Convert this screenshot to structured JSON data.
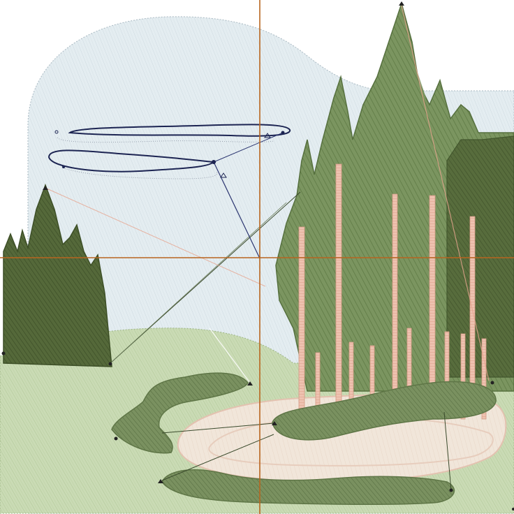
{
  "design": {
    "colors": {
      "background": "#ffffff",
      "sky_fill": "#e4edf1",
      "sky_stitch": "#c7d4db",
      "hill_fill": "#c9d9b4",
      "hill_stitch": "#aac18f",
      "far_trees": "#7c9460",
      "dark_trees": "#4b5f33",
      "mid_trees": "#6f8a54",
      "trunks": "#e8b7a3",
      "path": "#efe3d6",
      "path_edge": "#e6c8b8",
      "bush": "#748a57",
      "cloud_outline": "#1c2452",
      "guide_line": "#b8651f",
      "travel_line": "#2d3a24",
      "travel_line_blue": "#2b3570",
      "travel_line_pink": "#e7a58f"
    },
    "icons": [
      "stitch-node-icon",
      "guide-crosshair-icon"
    ]
  }
}
